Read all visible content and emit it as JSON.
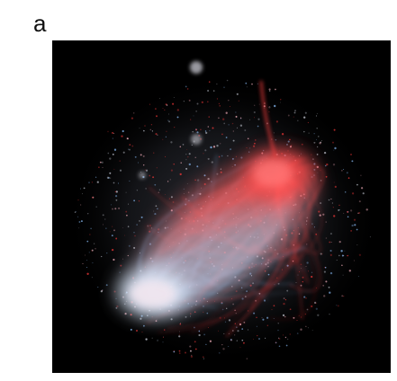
{
  "panel": {
    "label": "a"
  },
  "figure": {
    "background": "#000000",
    "colors": {
      "red": "#ff3b3b",
      "blue": "#8ec3ff",
      "pink": "#ffb7c4",
      "gray": "#c7cbd6"
    }
  }
}
